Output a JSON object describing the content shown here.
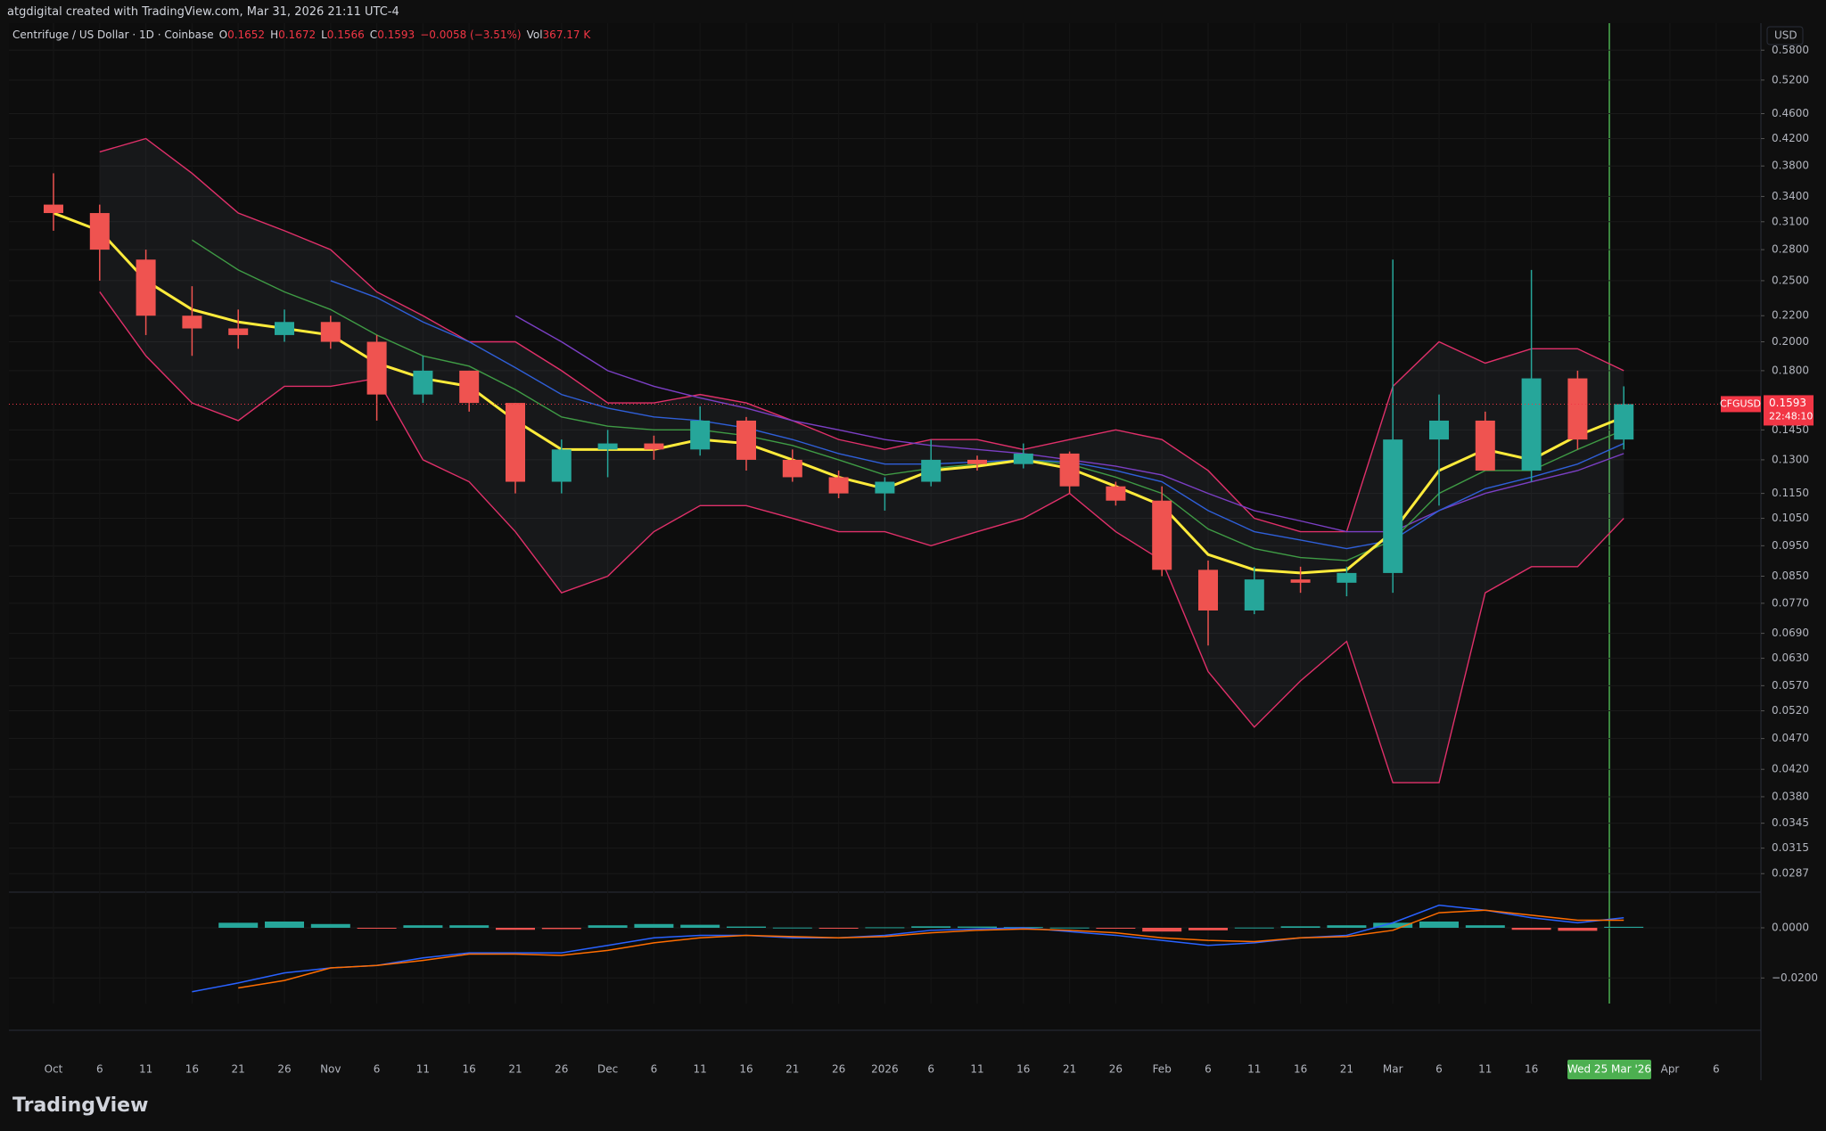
{
  "header": {
    "attribution": "atgdigital created with TradingView.com, Mar 31, 2026 21:11 UTC-4"
  },
  "footer": {
    "brand": "TradingView"
  },
  "currency": "USD",
  "crosshair_label": "Wed 25 Mar '26",
  "chart_data": [
    {
      "type": "candlestick",
      "legend": {
        "title": "Centrifuge / US Dollar · 1D · Coinbase",
        "items": [
          {
            "key": "O",
            "value": "0.1652"
          },
          {
            "key": "H",
            "value": "0.1672"
          },
          {
            "key": "L",
            "value": "0.1566"
          },
          {
            "key": "C",
            "value": "0.1593"
          },
          {
            "value": "−0.0058 (−3.51%)"
          },
          {
            "key": "Vol",
            "value": "367.17 K"
          }
        ]
      },
      "categories": [
        "Oct",
        "6",
        "11",
        "16",
        "21",
        "26",
        "Nov",
        "6",
        "11",
        "16",
        "21",
        "26",
        "Dec",
        "6",
        "11",
        "16",
        "21",
        "26",
        "2026",
        "6",
        "11",
        "16",
        "21",
        "26",
        "Feb",
        "6",
        "11",
        "16",
        "21",
        "Mar",
        "6",
        "11",
        "16",
        null,
        null,
        "Apr",
        "6"
      ],
      "open": [
        0.33,
        0.32,
        0.27,
        0.22,
        0.21,
        0.205,
        0.215,
        0.2,
        0.165,
        0.18,
        0.16,
        0.12,
        0.135,
        0.138,
        0.135,
        0.15,
        0.13,
        0.122,
        0.115,
        0.12,
        0.13,
        0.128,
        0.133,
        0.118,
        0.112,
        0.087,
        0.075,
        0.084,
        0.083,
        0.086,
        0.14,
        0.15,
        0.125,
        0.175,
        0.14,
        null,
        null
      ],
      "high": [
        0.37,
        0.33,
        0.28,
        0.245,
        0.225,
        0.225,
        0.22,
        0.205,
        0.19,
        0.18,
        0.16,
        0.14,
        0.145,
        0.142,
        0.158,
        0.152,
        0.135,
        0.125,
        0.122,
        0.14,
        0.132,
        0.138,
        0.134,
        0.12,
        0.118,
        0.09,
        0.088,
        0.088,
        0.088,
        0.27,
        0.165,
        0.155,
        0.26,
        0.18,
        0.17,
        null,
        null
      ],
      "low": [
        0.3,
        0.25,
        0.205,
        0.19,
        0.195,
        0.2,
        0.195,
        0.15,
        0.16,
        0.155,
        0.115,
        0.115,
        0.122,
        0.13,
        0.132,
        0.125,
        0.12,
        0.113,
        0.108,
        0.118,
        0.125,
        0.126,
        0.115,
        0.11,
        0.085,
        0.066,
        0.074,
        0.08,
        0.079,
        0.08,
        0.11,
        0.125,
        0.12,
        0.135,
        0.135,
        null,
        null
      ],
      "close": [
        0.32,
        0.28,
        0.22,
        0.21,
        0.205,
        0.215,
        0.2,
        0.165,
        0.18,
        0.16,
        0.12,
        0.135,
        0.138,
        0.135,
        0.15,
        0.13,
        0.122,
        0.115,
        0.12,
        0.13,
        0.128,
        0.133,
        0.118,
        0.112,
        0.087,
        0.075,
        0.084,
        0.083,
        0.086,
        0.14,
        0.15,
        0.125,
        0.175,
        0.14,
        0.1593,
        null,
        null
      ],
      "up_color": "#26a69a",
      "down_color": "#ef5350",
      "overlays": [
        {
          "color": "#e0306a",
          "values": [
            null,
            0.4,
            0.42,
            0.37,
            0.32,
            0.3,
            0.28,
            0.24,
            0.22,
            0.2,
            0.2,
            0.18,
            0.16,
            0.16,
            0.165,
            0.16,
            0.15,
            0.14,
            0.135,
            0.14,
            0.14,
            0.135,
            0.14,
            0.145,
            0.14,
            0.125,
            0.105,
            0.1,
            0.1,
            0.17,
            0.2,
            0.185,
            0.195,
            0.195,
            0.18,
            null,
            null
          ]
        },
        {
          "color": "#e0306a",
          "values": [
            null,
            0.24,
            0.19,
            0.16,
            0.15,
            0.17,
            0.17,
            0.175,
            0.13,
            0.12,
            0.1,
            0.08,
            0.085,
            0.1,
            0.11,
            0.11,
            0.105,
            0.1,
            0.1,
            0.095,
            0.1,
            0.105,
            0.115,
            0.1,
            0.09,
            0.06,
            0.049,
            0.058,
            0.067,
            0.04,
            0.04,
            0.08,
            0.088,
            0.088,
            0.105,
            null,
            null
          ]
        },
        {
          "color": "#7b3fc4",
          "values": [
            null,
            null,
            null,
            null,
            null,
            null,
            null,
            null,
            null,
            null,
            0.22,
            0.2,
            0.18,
            0.17,
            0.163,
            0.157,
            0.15,
            0.145,
            0.14,
            0.137,
            0.135,
            0.133,
            0.13,
            0.127,
            0.123,
            0.115,
            0.108,
            0.104,
            0.1,
            0.1,
            0.108,
            0.115,
            0.12,
            0.125,
            0.133,
            null,
            null
          ]
        },
        {
          "color": "#2f5fd8",
          "values": [
            null,
            null,
            null,
            null,
            null,
            null,
            0.25,
            0.235,
            0.215,
            0.2,
            0.182,
            0.165,
            0.157,
            0.152,
            0.15,
            0.146,
            0.14,
            0.133,
            0.128,
            0.128,
            0.129,
            0.13,
            0.129,
            0.125,
            0.12,
            0.108,
            0.1,
            0.097,
            0.094,
            0.097,
            0.108,
            0.117,
            0.122,
            0.128,
            0.138,
            null,
            null
          ]
        },
        {
          "color": "#3f9b45",
          "values": [
            null,
            null,
            null,
            0.29,
            0.26,
            0.24,
            0.225,
            0.205,
            0.19,
            0.183,
            0.168,
            0.152,
            0.147,
            0.145,
            0.145,
            0.142,
            0.137,
            0.13,
            0.123,
            0.126,
            0.128,
            0.13,
            0.128,
            0.122,
            0.115,
            0.101,
            0.094,
            0.091,
            0.09,
            0.097,
            0.115,
            0.125,
            0.125,
            0.135,
            0.145,
            null,
            null
          ]
        },
        {
          "color": "#ffeb3b",
          "values": [
            0.32,
            0.3,
            0.25,
            0.225,
            0.215,
            0.21,
            0.205,
            0.185,
            0.175,
            0.17,
            0.15,
            0.135,
            0.135,
            0.135,
            0.14,
            0.138,
            0.13,
            0.122,
            0.117,
            0.125,
            0.127,
            0.13,
            0.126,
            0.118,
            0.11,
            0.092,
            0.087,
            0.086,
            0.087,
            0.1,
            0.125,
            0.135,
            0.13,
            0.142,
            0.152,
            null,
            null
          ]
        }
      ],
      "band_fill": "rgba(120,130,150,0.10)",
      "log_scale": true,
      "grid": true,
      "ylim": [
        0.027,
        0.64
      ],
      "yticks": [
        {
          "value": 0.58,
          "label": "0.5800"
        },
        {
          "value": 0.52,
          "label": "0.5200"
        },
        {
          "value": 0.46,
          "label": "0.4600"
        },
        {
          "value": 0.42,
          "label": "0.4200"
        },
        {
          "value": 0.38,
          "label": "0.3800"
        },
        {
          "value": 0.34,
          "label": "0.3400"
        },
        {
          "value": 0.31,
          "label": "0.3100"
        },
        {
          "value": 0.28,
          "label": "0.2800"
        },
        {
          "value": 0.25,
          "label": "0.2500"
        },
        {
          "value": 0.22,
          "label": "0.2200"
        },
        {
          "value": 0.2,
          "label": "0.2000"
        },
        {
          "value": 0.18,
          "label": "0.1800"
        },
        {
          "value": 0.145,
          "label": "0.1450"
        },
        {
          "value": 0.13,
          "label": "0.1300"
        },
        {
          "value": 0.115,
          "label": "0.1150"
        },
        {
          "value": 0.105,
          "label": "0.1050"
        },
        {
          "value": 0.095,
          "label": "0.0950"
        },
        {
          "value": 0.085,
          "label": "0.0850"
        },
        {
          "value": 0.077,
          "label": "0.0770"
        },
        {
          "value": 0.069,
          "label": "0.0690"
        },
        {
          "value": 0.063,
          "label": "0.0630"
        },
        {
          "value": 0.057,
          "label": "0.0570"
        },
        {
          "value": 0.052,
          "label": "0.0520"
        },
        {
          "value": 0.047,
          "label": "0.0470"
        },
        {
          "value": 0.042,
          "label": "0.0420"
        },
        {
          "value": 0.038,
          "label": "0.0380"
        },
        {
          "value": 0.0345,
          "label": "0.0345"
        },
        {
          "value": 0.0315,
          "label": "0.0315"
        },
        {
          "value": 0.0287,
          "label": "0.0287"
        }
      ],
      "last_price": {
        "symbol": "CFGUSD",
        "value": 0.1593,
        "countdown": "22:48:10",
        "color": "#f23645"
      }
    },
    {
      "type": "macd",
      "ylim": [
        -0.0302,
        0.0135
      ],
      "yticks": [
        {
          "value": 0,
          "label": "0.0000"
        },
        {
          "value": -0.02,
          "label": "−0.0200"
        }
      ],
      "histogram": [
        null,
        null,
        null,
        null,
        0.002,
        0.0025,
        0.0015,
        -0.0003,
        0.001,
        0.001,
        -0.0008,
        -0.0005,
        0.001,
        0.0015,
        0.0012,
        0.0005,
        0.0001,
        -0.0003,
        0.0002,
        0.0006,
        0.0005,
        0.0003,
        0.0001,
        -0.0002,
        -0.0015,
        -0.001,
        0.0001,
        0.0006,
        0.001,
        0.002,
        0.0025,
        0.001,
        -0.0008,
        -0.0012,
        0.0004,
        null,
        null
      ],
      "up_color": "#26a69a",
      "down_color": "#ef5350",
      "lines": [
        {
          "color": "#2962ff",
          "values": [
            null,
            null,
            null,
            -0.0255,
            -0.022,
            -0.018,
            -0.016,
            -0.015,
            -0.012,
            -0.01,
            -0.01,
            -0.01,
            -0.007,
            -0.004,
            -0.003,
            -0.003,
            -0.004,
            -0.004,
            -0.003,
            -0.001,
            -0.0005,
            0,
            -0.0015,
            -0.003,
            -0.005,
            -0.007,
            -0.006,
            -0.004,
            -0.003,
            0.002,
            0.009,
            0.007,
            0.004,
            0.002,
            0.004,
            null,
            null
          ]
        },
        {
          "color": "#ff6d00",
          "values": [
            null,
            null,
            null,
            null,
            -0.024,
            -0.021,
            -0.016,
            -0.015,
            -0.013,
            -0.0105,
            -0.0105,
            -0.011,
            -0.009,
            -0.006,
            -0.004,
            -0.003,
            -0.0035,
            -0.004,
            -0.0035,
            -0.002,
            -0.001,
            -0.0005,
            -0.001,
            -0.002,
            -0.004,
            -0.005,
            -0.0055,
            -0.004,
            -0.0035,
            -0.001,
            0.006,
            0.007,
            0.005,
            0.003,
            0.003,
            null,
            null
          ]
        }
      ]
    }
  ]
}
